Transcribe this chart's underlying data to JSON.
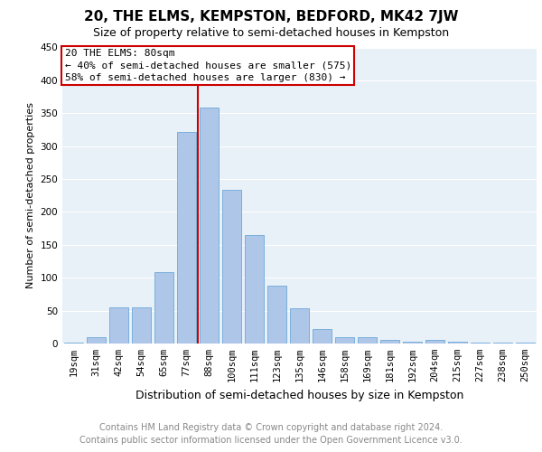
{
  "title": "20, THE ELMS, KEMPSTON, BEDFORD, MK42 7JW",
  "subtitle": "Size of property relative to semi-detached houses in Kempston",
  "xlabel": "Distribution of semi-detached houses by size in Kempston",
  "ylabel": "Number of semi-detached properties",
  "categories": [
    "19sqm",
    "31sqm",
    "42sqm",
    "54sqm",
    "65sqm",
    "77sqm",
    "88sqm",
    "100sqm",
    "111sqm",
    "123sqm",
    "135sqm",
    "146sqm",
    "158sqm",
    "169sqm",
    "181sqm",
    "192sqm",
    "204sqm",
    "215sqm",
    "227sqm",
    "238sqm",
    "250sqm"
  ],
  "values": [
    2,
    10,
    55,
    55,
    109,
    322,
    358,
    233,
    165,
    88,
    53,
    22,
    10,
    10,
    5,
    3,
    5,
    3,
    2,
    2,
    1
  ],
  "bar_color": "#aec6e8",
  "bar_edgecolor": "#5a9fd4",
  "vline_color": "#cc0000",
  "annotation_title": "20 THE ELMS: 80sqm",
  "annotation_line1": "← 40% of semi-detached houses are smaller (575)",
  "annotation_line2": "58% of semi-detached houses are larger (830) →",
  "annotation_box_color": "#cc0000",
  "ylim": [
    0,
    450
  ],
  "yticks": [
    0,
    50,
    100,
    150,
    200,
    250,
    300,
    350,
    400,
    450
  ],
  "footer_line1": "Contains HM Land Registry data © Crown copyright and database right 2024.",
  "footer_line2": "Contains public sector information licensed under the Open Government Licence v3.0.",
  "bg_color": "#e8f0f8",
  "grid_color": "#ffffff",
  "title_fontsize": 11,
  "subtitle_fontsize": 9,
  "xlabel_fontsize": 9,
  "ylabel_fontsize": 8,
  "tick_fontsize": 7.5,
  "footer_fontsize": 7,
  "annotation_fontsize": 8
}
